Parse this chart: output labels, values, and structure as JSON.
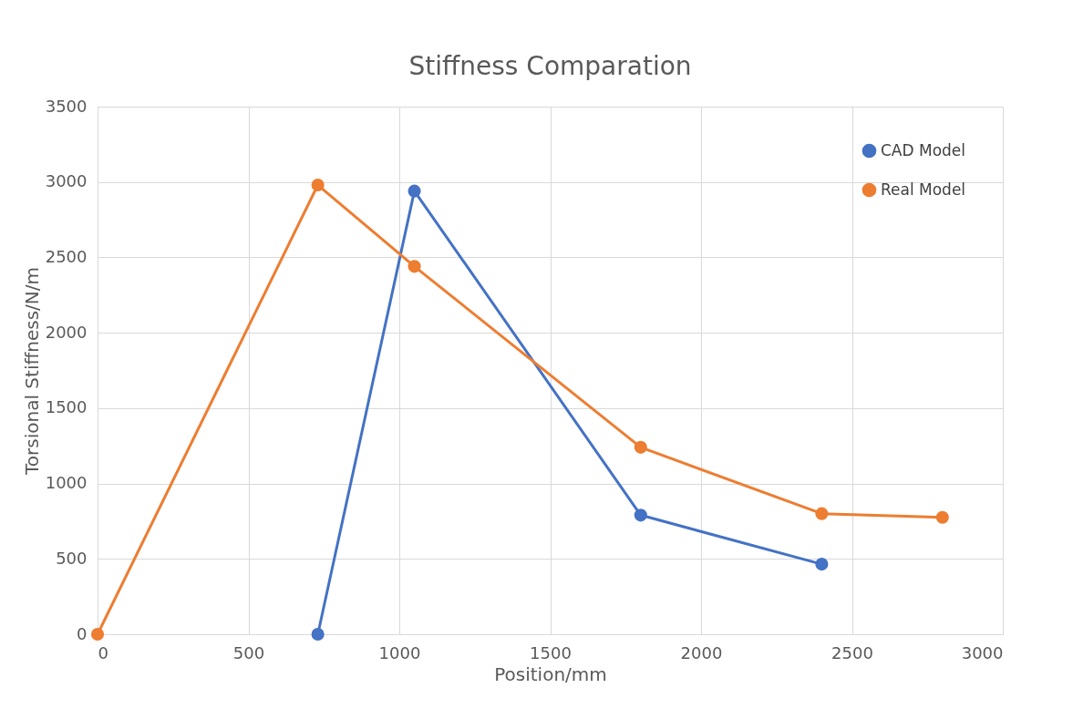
{
  "chart_data": {
    "type": "line",
    "title": "Stiffness Comparation",
    "xlabel": "Position/mm",
    "ylabel": "Torsional Stiffness/N/m",
    "series": [
      {
        "name": "CAD Model",
        "color": "#4472c4",
        "x": [
          730,
          1050,
          1800,
          2400
        ],
        "values": [
          0,
          2940,
          790,
          465
        ]
      },
      {
        "name": "Real Model",
        "color": "#ed7d31",
        "x": [
          0,
          730,
          1050,
          1800,
          2400,
          2800
        ],
        "values": [
          0,
          2980,
          2440,
          1240,
          800,
          775
        ]
      }
    ],
    "xlim": [
      0,
      3000
    ],
    "xticks": [
      0,
      500,
      1000,
      1500,
      2000,
      2500,
      3000
    ],
    "ylim": [
      0,
      3500
    ],
    "yticks": [
      0,
      500,
      1000,
      1500,
      2000,
      2500,
      3000,
      3500
    ],
    "grid": true,
    "legend": "top right",
    "marker": "circle",
    "line_style": "solid"
  }
}
